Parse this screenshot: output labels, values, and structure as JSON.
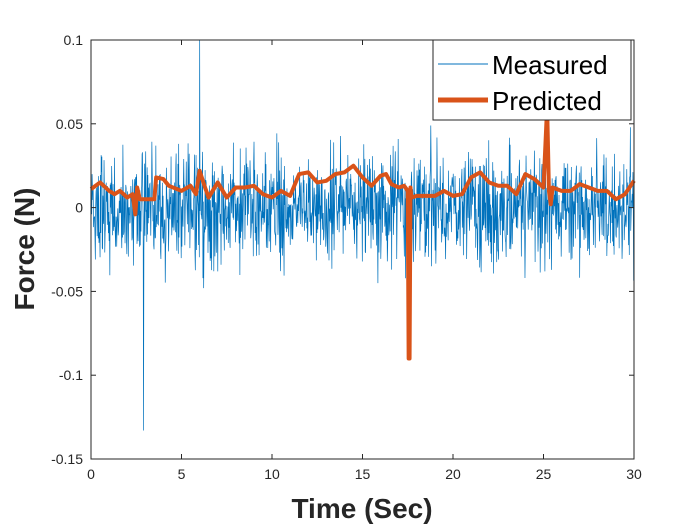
{
  "chart_data": {
    "type": "line",
    "title": "",
    "xlabel": "Time (Sec)",
    "ylabel": "Force (N)",
    "xlim": [
      0,
      30
    ],
    "ylim": [
      -0.15,
      0.1
    ],
    "xticks": [
      0,
      5,
      10,
      15,
      20,
      25,
      30
    ],
    "yticks": [
      -0.15,
      -0.1,
      -0.05,
      0,
      0.05,
      0.1
    ],
    "xtick_labels": [
      "0",
      "5",
      "10",
      "15",
      "20",
      "25",
      "30"
    ],
    "ytick_labels": [
      "-0.15",
      "-0.1",
      "-0.05",
      "0",
      "0.05",
      "0.1"
    ],
    "grid": false,
    "legend_position": "top-right",
    "series": [
      {
        "name": "Measured",
        "color": "#0072BD",
        "style": "thin-line",
        "description_stats": {
          "n_samples": 1500,
          "mean": 0.0,
          "std": 0.033,
          "min": -0.133,
          "min_at": 2.9,
          "max": 0.1,
          "max_at": 6.0
        }
      },
      {
        "name": "Predicted",
        "color": "#D95319",
        "style": "thick-line",
        "x": [
          0,
          0.5,
          1,
          1.3,
          1.6,
          2,
          2.3,
          2.45,
          2.55,
          2.7,
          3,
          3.5,
          3.6,
          4,
          4.3,
          5,
          5.5,
          5.8,
          6,
          6.3,
          6.5,
          7,
          7.5,
          8,
          8.5,
          9,
          9.5,
          10,
          10.5,
          11,
          11.5,
          12,
          12.5,
          13,
          13.5,
          14,
          14.5,
          15,
          15.5,
          16,
          16.3,
          16.6,
          17,
          17.3,
          17.5,
          17.55,
          17.6,
          17.65,
          17.7,
          18,
          18.5,
          19,
          19.5,
          20,
          20.5,
          21,
          21.5,
          22,
          22.5,
          23,
          23.5,
          24,
          24.5,
          25,
          25.2,
          25.3,
          25.4,
          25.5,
          26,
          26.5,
          27,
          27.5,
          28,
          28.5,
          29,
          29.5,
          30
        ],
        "y": [
          0.011,
          0.015,
          0.01,
          0.008,
          0.01,
          0.006,
          0.008,
          -0.004,
          0.012,
          0.005,
          0.005,
          0.005,
          0.018,
          0.017,
          0.013,
          0.01,
          0.013,
          0.008,
          0.022,
          0.012,
          0.006,
          0.015,
          0.006,
          0.012,
          0.012,
          0.013,
          0.008,
          0.006,
          0.01,
          0.007,
          0.02,
          0.021,
          0.015,
          0.016,
          0.02,
          0.021,
          0.025,
          0.018,
          0.013,
          0.019,
          0.02,
          0.014,
          0.012,
          0.013,
          0.01,
          -0.09,
          -0.09,
          0.012,
          0.006,
          0.007,
          0.007,
          0.007,
          0.01,
          0.007,
          0.008,
          0.018,
          0.021,
          0.015,
          0.013,
          0.013,
          0.008,
          0.02,
          0.017,
          0.012,
          0.06,
          0.01,
          0.002,
          0.012,
          0.01,
          0.01,
          0.014,
          0.012,
          0.01,
          0.01,
          0.005,
          0.008,
          0.016
        ]
      }
    ]
  }
}
